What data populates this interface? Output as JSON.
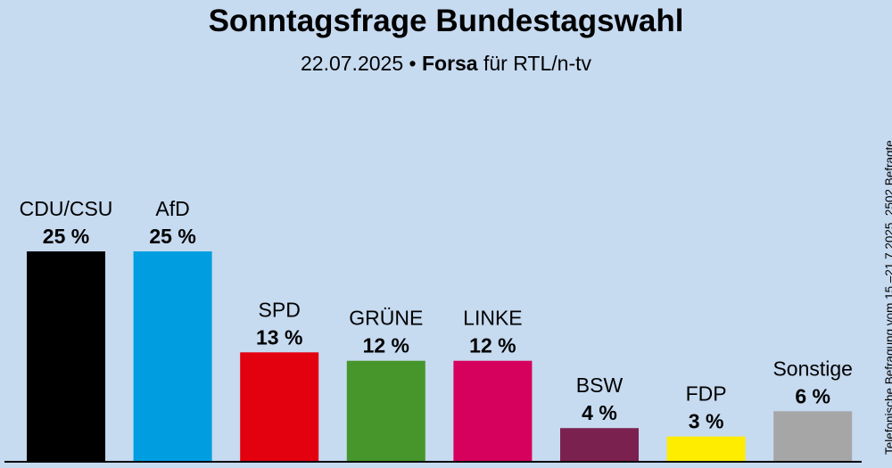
{
  "chart_data": {
    "type": "bar",
    "title": "Sonntagsfrage Bundestagswahl",
    "subtitle": {
      "date": "22.07.2025",
      "separator": "•",
      "institute": "Forsa",
      "client": "für RTL/n-tv"
    },
    "categories": [
      "CDU/CSU",
      "AfD",
      "SPD",
      "GRÜNE",
      "LINKE",
      "BSW",
      "FDP",
      "Sonstige"
    ],
    "values": [
      25,
      25,
      13,
      12,
      12,
      4,
      3,
      6
    ],
    "value_labels": [
      "25 %",
      "25 %",
      "13 %",
      "12 %",
      "12 %",
      "4 %",
      "3 %",
      "6 %"
    ],
    "colors": [
      "#000000",
      "#009ee0",
      "#e3000f",
      "#46962b",
      "#d6005d",
      "#7b2150",
      "#ffed00",
      "#a6a6a6"
    ],
    "unit": "%",
    "ylim": [
      0,
      25
    ],
    "xlabel": "",
    "ylabel": "",
    "source_note": "Telefonische Befragung vom 15.–21.7.2025, 2502 Befragte"
  }
}
